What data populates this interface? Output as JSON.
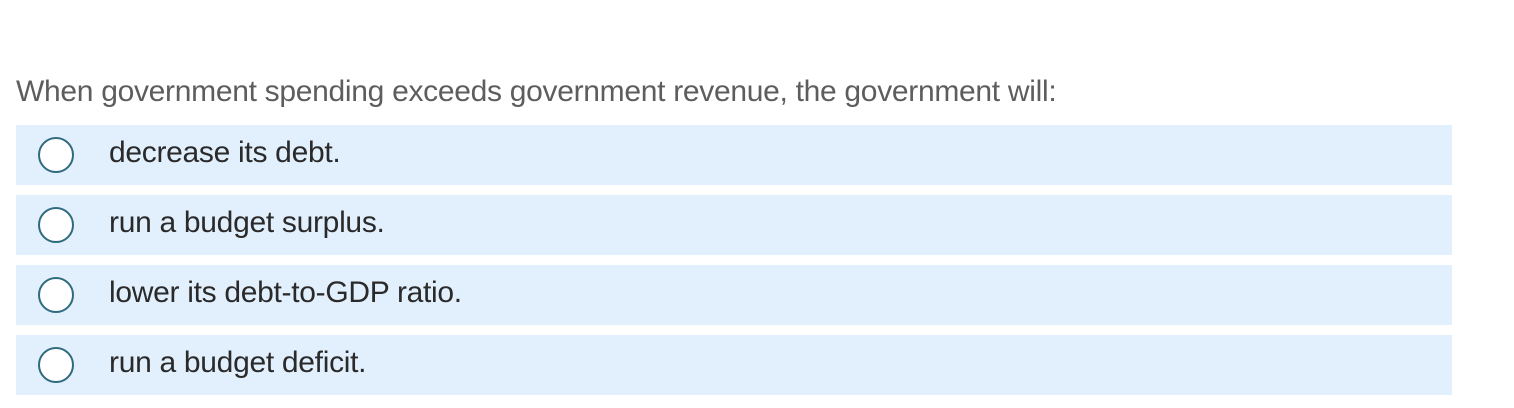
{
  "question": {
    "text": "When government spending exceeds government revenue, the government will:"
  },
  "options": [
    {
      "label": "decrease its debt.",
      "selected": false
    },
    {
      "label": "run a budget surplus.",
      "selected": false
    },
    {
      "label": "lower its debt-to-GDP ratio.",
      "selected": false
    },
    {
      "label": "run a budget deficit.",
      "selected": false
    }
  ],
  "colors": {
    "option_background": "#e2effc",
    "radio_border": "#2f6b7f",
    "question_text": "#5d5d5d",
    "option_text": "#2a2a2a"
  }
}
